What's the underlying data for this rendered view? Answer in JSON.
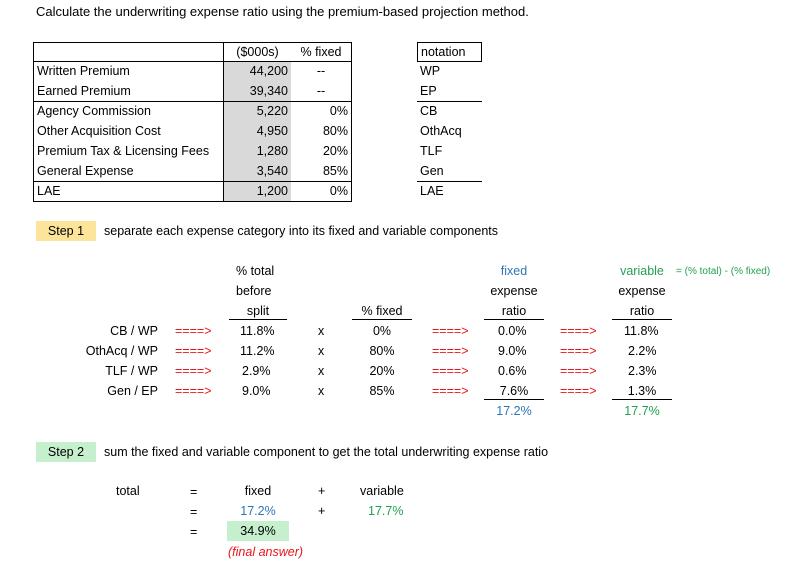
{
  "title": "Calculate the underwriting expense ratio using the premium-based projection method.",
  "input_table": {
    "col_amount": "($000s)",
    "col_fixed": "% fixed",
    "col_notation": "notation",
    "rows": [
      {
        "label": "Written Premium",
        "amount": "44,200",
        "fixed": "--",
        "notation": "WP"
      },
      {
        "label": "Earned Premium",
        "amount": "39,340",
        "fixed": "--",
        "notation": "EP"
      },
      {
        "label": "Agency Commission",
        "amount": "5,220",
        "fixed": "0%",
        "notation": "CB"
      },
      {
        "label": "Other Acquisition Cost",
        "amount": "4,950",
        "fixed": "80%",
        "notation": "OthAcq"
      },
      {
        "label": "Premium Tax & Licensing Fees",
        "amount": "1,280",
        "fixed": "20%",
        "notation": "TLF"
      },
      {
        "label": "General Expense",
        "amount": "3,540",
        "fixed": "85%",
        "notation": "Gen"
      },
      {
        "label": "LAE",
        "amount": "1,200",
        "fixed": "0%",
        "notation": "LAE"
      }
    ]
  },
  "step1": {
    "label": "Step 1",
    "text": "separate each expense category into its fixed and variable components",
    "headers": {
      "total": [
        "% total",
        "before",
        "split"
      ],
      "pct_fixed": "% fixed",
      "fixed": [
        "fixed",
        "expense",
        "ratio"
      ],
      "variable": [
        "variable",
        "expense",
        "ratio"
      ],
      "variable_note": "= (% total) - (% fixed)"
    },
    "arrow": "====>",
    "times": "x",
    "rows": [
      {
        "label": "CB / WP",
        "total": "11.8%",
        "pct_fixed": "0%",
        "fixed": "0.0%",
        "variable": "11.8%"
      },
      {
        "label": "OthAcq / WP",
        "total": "11.2%",
        "pct_fixed": "80%",
        "fixed": "9.0%",
        "variable": "2.2%"
      },
      {
        "label": "TLF / WP",
        "total": "2.9%",
        "pct_fixed": "20%",
        "fixed": "0.6%",
        "variable": "2.3%"
      },
      {
        "label": "Gen / EP",
        "total": "9.0%",
        "pct_fixed": "85%",
        "fixed": "7.6%",
        "variable": "1.3%"
      }
    ],
    "fixed_sum": "17.2%",
    "variable_sum": "17.7%"
  },
  "step2": {
    "label": "Step 2",
    "text": "sum the fixed and variable component to get the total underwriting expense ratio",
    "total_label": "total",
    "eq": "=",
    "plus": "+",
    "fixed_label": "fixed",
    "variable_label": "variable",
    "fixed_value": "17.2%",
    "variable_value": "17.7%",
    "result": "34.9%",
    "final_note": "(final answer)"
  }
}
